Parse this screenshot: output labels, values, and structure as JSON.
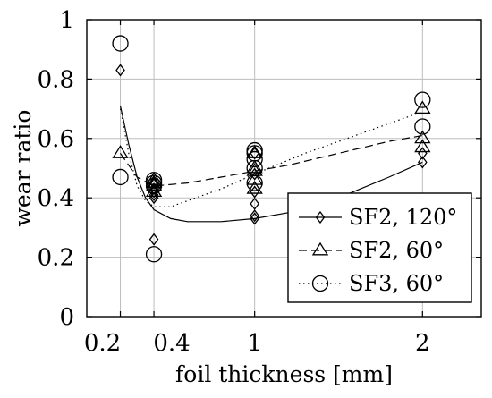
{
  "chart_data": {
    "type": "scatter",
    "xlabel": "foil thickness [mm]",
    "ylabel": "wear ratio",
    "xlim": [
      0.0,
      2.35
    ],
    "ylim": [
      0,
      1
    ],
    "xticks": [
      0.2,
      0.4,
      1,
      2
    ],
    "xtick_labels": [
      "0.2",
      "0.4",
      "1",
      "2"
    ],
    "yticks": [
      0,
      0.2,
      0.4,
      0.6,
      0.8,
      1
    ],
    "ytick_labels": [
      "0",
      "0.2",
      "0.4",
      "0.6",
      "0.8",
      "1"
    ],
    "grid": true,
    "legend_position": "bottom-right",
    "series": [
      {
        "name": "SF2, 120°",
        "marker": "diamond",
        "line_style": "solid",
        "points": [
          [
            0.2,
            0.83
          ],
          [
            0.4,
            0.26
          ],
          [
            0.4,
            0.4
          ],
          [
            0.4,
            0.41
          ],
          [
            0.4,
            0.42
          ],
          [
            0.4,
            0.43
          ],
          [
            0.4,
            0.45
          ],
          [
            1,
            0.33
          ],
          [
            1,
            0.34
          ],
          [
            1,
            0.38
          ],
          [
            1,
            0.42
          ],
          [
            1,
            0.48
          ],
          [
            1,
            0.55
          ],
          [
            2,
            0.52
          ],
          [
            2,
            0.55
          ]
        ],
        "fit": [
          [
            0.2,
            0.71
          ],
          [
            0.25,
            0.58
          ],
          [
            0.3,
            0.47
          ],
          [
            0.35,
            0.4
          ],
          [
            0.4,
            0.36
          ],
          [
            0.5,
            0.33
          ],
          [
            0.6,
            0.32
          ],
          [
            0.8,
            0.32
          ],
          [
            1.0,
            0.33
          ],
          [
            1.2,
            0.35
          ],
          [
            1.5,
            0.4
          ],
          [
            1.8,
            0.47
          ],
          [
            2.0,
            0.52
          ]
        ]
      },
      {
        "name": "SF2, 60°",
        "marker": "triangle",
        "line_style": "dashed",
        "points": [
          [
            0.2,
            0.55
          ],
          [
            0.4,
            0.42
          ],
          [
            0.4,
            0.44
          ],
          [
            0.4,
            0.45
          ],
          [
            0.4,
            0.46
          ],
          [
            1,
            0.43
          ],
          [
            1,
            0.46
          ],
          [
            1,
            0.49
          ],
          [
            1,
            0.5
          ],
          [
            1,
            0.55
          ],
          [
            2,
            0.57
          ],
          [
            2,
            0.6
          ],
          [
            2,
            0.7
          ]
        ],
        "fit": [
          [
            0.2,
            0.55
          ],
          [
            0.3,
            0.47
          ],
          [
            0.4,
            0.44
          ],
          [
            0.6,
            0.45
          ],
          [
            0.8,
            0.47
          ],
          [
            1.0,
            0.49
          ],
          [
            1.2,
            0.51
          ],
          [
            1.5,
            0.55
          ],
          [
            1.8,
            0.59
          ],
          [
            2.0,
            0.61
          ]
        ]
      },
      {
        "name": "SF3, 60°",
        "marker": "circle",
        "line_style": "dotted",
        "points": [
          [
            0.2,
            0.92
          ],
          [
            0.2,
            0.47
          ],
          [
            0.4,
            0.21
          ],
          [
            0.4,
            0.44
          ],
          [
            0.4,
            0.45
          ],
          [
            0.4,
            0.46
          ],
          [
            1,
            0.45
          ],
          [
            1,
            0.5
          ],
          [
            1,
            0.53
          ],
          [
            1,
            0.55
          ],
          [
            1,
            0.56
          ],
          [
            2,
            0.64
          ],
          [
            2,
            0.73
          ]
        ],
        "fit": [
          [
            0.2,
            0.7
          ],
          [
            0.25,
            0.55
          ],
          [
            0.3,
            0.44
          ],
          [
            0.35,
            0.39
          ],
          [
            0.4,
            0.37
          ],
          [
            0.5,
            0.37
          ],
          [
            0.6,
            0.39
          ],
          [
            0.8,
            0.43
          ],
          [
            1.0,
            0.48
          ],
          [
            1.3,
            0.55
          ],
          [
            1.6,
            0.61
          ],
          [
            2.0,
            0.69
          ]
        ]
      }
    ]
  }
}
